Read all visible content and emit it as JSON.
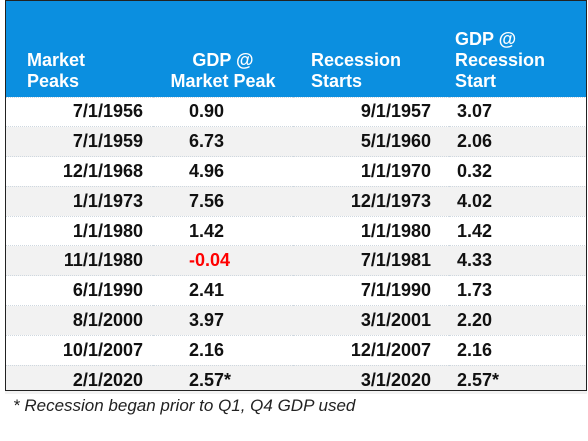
{
  "table": {
    "headers": {
      "col1": [
        "Market",
        "Peaks"
      ],
      "col2": [
        "GDP @",
        "Market Peak"
      ],
      "col3": [
        "Recession",
        "Starts"
      ],
      "col4": [
        "GDP @",
        "Recession",
        "Start"
      ]
    },
    "rows": [
      {
        "market_peak": "7/1/1956",
        "gdp_peak": "0.90",
        "recession_start": "9/1/1957",
        "gdp_recession": "3.07"
      },
      {
        "market_peak": "7/1/1959",
        "gdp_peak": "6.73",
        "recession_start": "5/1/1960",
        "gdp_recession": "2.06"
      },
      {
        "market_peak": "12/1/1968",
        "gdp_peak": "4.96",
        "recession_start": "1/1/1970",
        "gdp_recession": "0.32"
      },
      {
        "market_peak": "1/1/1973",
        "gdp_peak": "7.56",
        "recession_start": "12/1/1973",
        "gdp_recession": "4.02"
      },
      {
        "market_peak": "1/1/1980",
        "gdp_peak": "1.42",
        "recession_start": "1/1/1980",
        "gdp_recession": "1.42"
      },
      {
        "market_peak": "11/1/1980",
        "gdp_peak": "-0.04",
        "recession_start": "7/1/1981",
        "gdp_recession": "4.33"
      },
      {
        "market_peak": "6/1/1990",
        "gdp_peak": "2.41",
        "recession_start": "7/1/1990",
        "gdp_recession": "1.73"
      },
      {
        "market_peak": "8/1/2000",
        "gdp_peak": "3.97",
        "recession_start": "3/1/2001",
        "gdp_recession": "2.20"
      },
      {
        "market_peak": "10/1/2007",
        "gdp_peak": "2.16",
        "recession_start": "12/1/2007",
        "gdp_recession": "2.16"
      },
      {
        "market_peak": "2/1/2020",
        "gdp_peak": "2.57*",
        "recession_start": "3/1/2020",
        "gdp_recession": "2.57*"
      }
    ]
  },
  "footnote": "* Recession began prior to Q1, Q4 GDP used",
  "colors": {
    "header_bg": "#0b8fe0",
    "negative": "#ff0000"
  }
}
